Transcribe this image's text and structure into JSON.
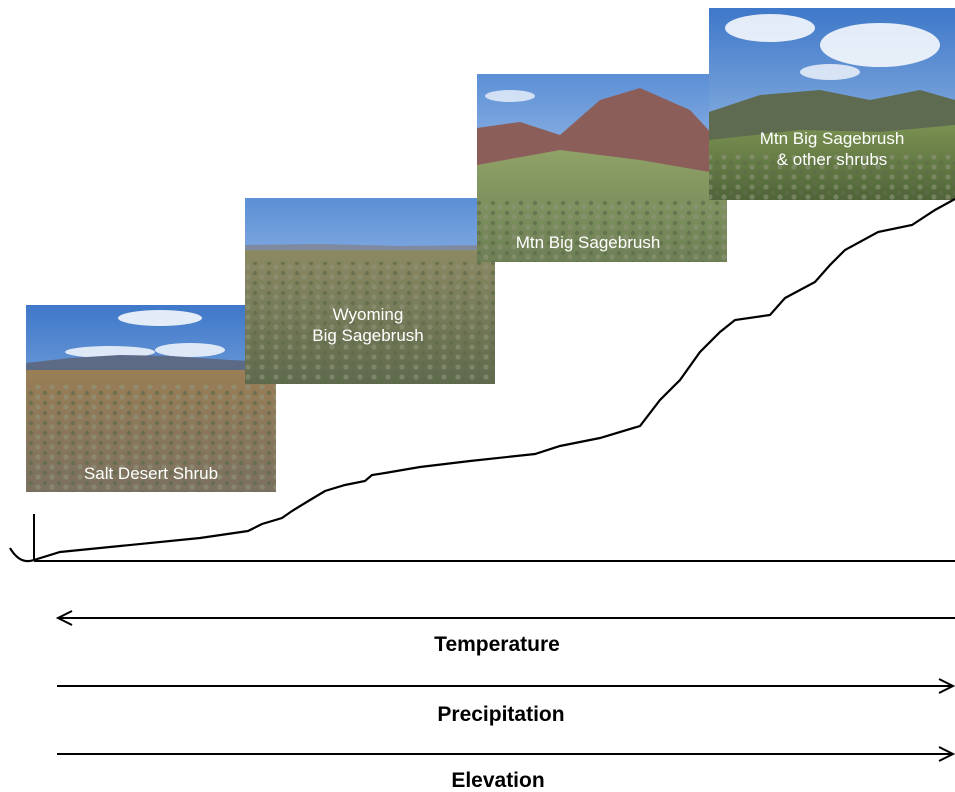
{
  "photos": [
    {
      "lines": [
        "Salt Desert Shrub"
      ],
      "icon": "salt-desert-landscape"
    },
    {
      "lines": [
        "Wyoming",
        "Big Sagebrush"
      ],
      "icon": "sagebrush-flat-landscape"
    },
    {
      "lines": [
        "Mtn  Big Sagebrush"
      ],
      "icon": "sagebrush-hills-landscape"
    },
    {
      "lines": [
        "Mtn  Big Sagebrush",
        "& other shrubs"
      ],
      "icon": "mountain-shrub-landscape"
    }
  ],
  "gradients": [
    {
      "label": "Temperature",
      "direction": "left"
    },
    {
      "label": "Precipitation",
      "direction": "right"
    },
    {
      "label": "Elevation",
      "direction": "right"
    }
  ],
  "colors": {
    "sky": "#6f9fd8",
    "ground": "#8a8368",
    "vegetation": "#6f7a5a",
    "line": "#000000"
  }
}
